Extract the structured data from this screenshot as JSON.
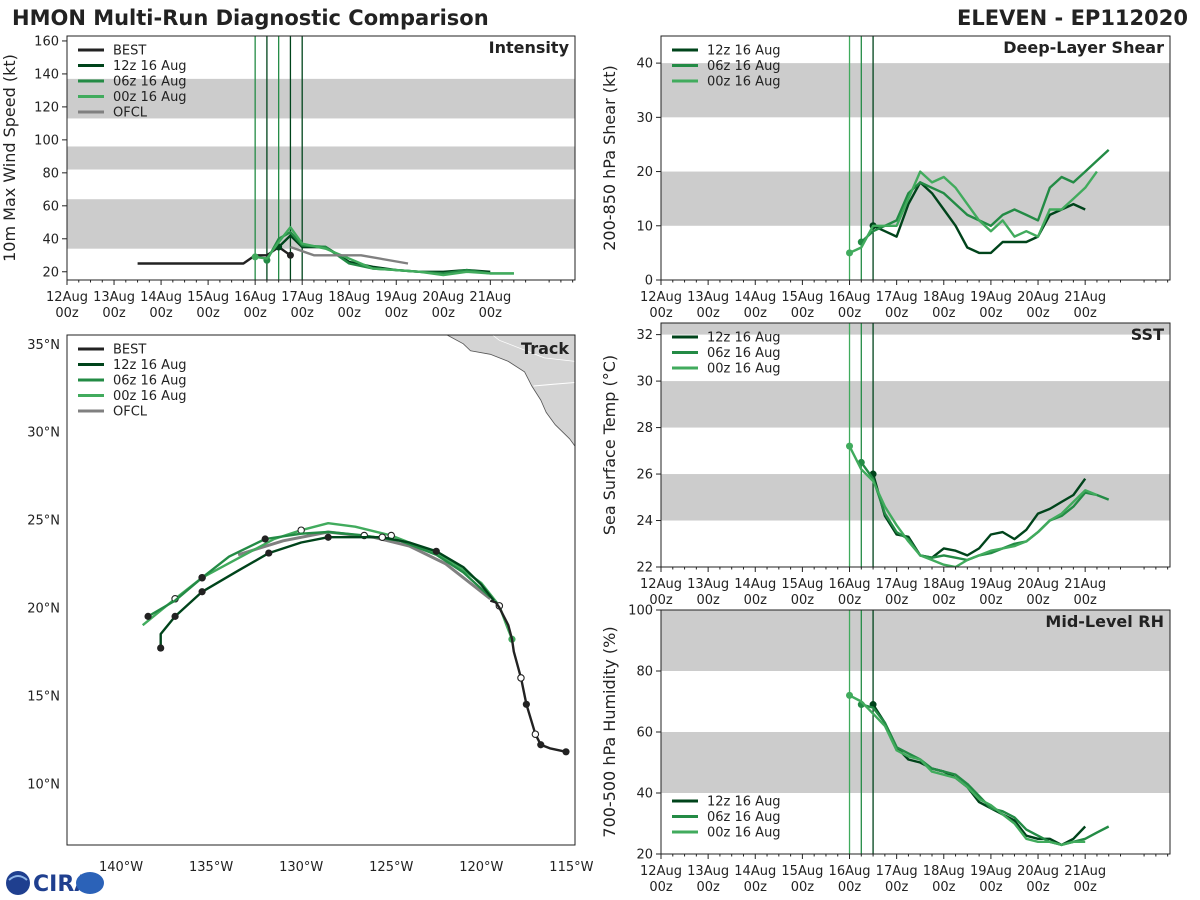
{
  "header": {
    "left_title": "HMON Multi-Run Diagnostic Comparison",
    "right_title": "ELEVEN - EP112020"
  },
  "logo": {
    "text": "CIRA"
  },
  "time_ticks": [
    {
      "day": "12Aug",
      "hour": "00z"
    },
    {
      "day": "13Aug",
      "hour": "00z"
    },
    {
      "day": "14Aug",
      "hour": "00z"
    },
    {
      "day": "15Aug",
      "hour": "00z"
    },
    {
      "day": "16Aug",
      "hour": "00z"
    },
    {
      "day": "17Aug",
      "hour": "00z"
    },
    {
      "day": "18Aug",
      "hour": "00z"
    },
    {
      "day": "19Aug",
      "hour": "00z"
    },
    {
      "day": "20Aug",
      "hour": "00z"
    },
    {
      "day": "21Aug",
      "hour": "00z"
    }
  ],
  "colors": {
    "BEST": "#222222",
    "12z": "#00441b",
    "06z": "#238b45",
    "00z": "#41ab5d",
    "OFCL": "#808080",
    "band": "#cccccc",
    "land": "#d4d4d4"
  },
  "chart_data": [
    {
      "id": "intensity",
      "type": "line",
      "title": "Intensity",
      "ylabel": "10m Max Wind Speed (kt)",
      "x_unit": "days since 12Aug 00z",
      "xlim": [
        0,
        10.8
      ],
      "ylim": [
        15,
        163
      ],
      "yticks": [
        20,
        40,
        60,
        80,
        100,
        120,
        140,
        160
      ],
      "bands": [
        [
          34,
          64
        ],
        [
          82,
          96
        ],
        [
          113,
          137
        ]
      ],
      "vlines": [
        {
          "x": 4.0,
          "color": "06z"
        },
        {
          "x": 4.25,
          "color": "12z"
        },
        {
          "x": 4.5,
          "color": "06z"
        },
        {
          "x": 4.75,
          "color": "12z"
        },
        {
          "x": 5.0,
          "color": "12z"
        }
      ],
      "legend": [
        "BEST",
        "12z 16 Aug",
        "06z 16 Aug",
        "00z 16 Aug",
        "OFCL"
      ],
      "series": [
        {
          "name": "BEST",
          "color": "BEST",
          "x": [
            1.5,
            2,
            2.5,
            3,
            3.5,
            3.75,
            4.0,
            4.25,
            4.5,
            4.75
          ],
          "y": [
            25,
            25,
            25,
            25,
            25,
            25,
            30,
            30,
            35,
            30
          ],
          "dots": [
            4.75
          ]
        },
        {
          "name": "12z 16 Aug",
          "color": "12z",
          "x": [
            4.5,
            4.75,
            5.0,
            5.5,
            6,
            6.5,
            7,
            7.5,
            8,
            8.5,
            9
          ],
          "y": [
            35,
            42,
            35,
            35,
            26,
            23,
            21,
            20,
            20,
            21,
            20
          ],
          "dots": [
            4.5
          ]
        },
        {
          "name": "06z 16 Aug",
          "color": "06z",
          "x": [
            4.25,
            4.5,
            4.75,
            5.0,
            5.5,
            6,
            6.5,
            7,
            7.5,
            8,
            8.5,
            9,
            9.5
          ],
          "y": [
            27,
            40,
            44,
            36,
            35,
            25,
            22,
            21,
            20,
            19,
            21,
            19,
            19
          ],
          "dots": [
            4.25
          ]
        },
        {
          "name": "00z 16 Aug",
          "color": "00z",
          "x": [
            4.0,
            4.25,
            4.5,
            4.75,
            5.0,
            5.5,
            6,
            6.5,
            7,
            7.5,
            8,
            8.5,
            9,
            9.5
          ],
          "y": [
            29,
            28,
            38,
            47,
            37,
            34,
            28,
            22,
            21,
            20,
            18,
            20,
            19,
            19
          ],
          "dots": [
            4.0
          ]
        },
        {
          "name": "OFCL",
          "color": "OFCL",
          "x": [
            4.75,
            5.25,
            6.25,
            7.25
          ],
          "y": [
            35,
            30,
            30,
            25
          ]
        }
      ]
    },
    {
      "id": "shear",
      "type": "line",
      "title": "Deep-Layer Shear",
      "ylabel": "200-850 hPa Shear (kt)",
      "x_unit": "days since 12Aug 00z",
      "xlim": [
        0,
        10.8
      ],
      "ylim": [
        0,
        45
      ],
      "yticks": [
        0,
        10,
        20,
        30,
        40
      ],
      "bands": [
        [
          10,
          20
        ],
        [
          30,
          40
        ]
      ],
      "vlines": [
        {
          "x": 4.0,
          "color": "00z"
        },
        {
          "x": 4.25,
          "color": "06z"
        },
        {
          "x": 4.5,
          "color": "12z"
        }
      ],
      "legend": [
        "12z 16 Aug",
        "06z 16 Aug",
        "00z 16 Aug"
      ],
      "series": [
        {
          "name": "12z 16 Aug",
          "color": "12z",
          "x": [
            4.5,
            4.75,
            5.0,
            5.25,
            5.5,
            5.75,
            6.0,
            6.25,
            6.5,
            6.75,
            7.0,
            7.25,
            7.5,
            7.75,
            8.0,
            8.25,
            8.5,
            8.75,
            9.0
          ],
          "y": [
            10,
            9,
            8,
            14,
            18,
            16,
            13,
            10,
            6,
            5,
            5,
            7,
            7,
            7,
            8,
            12,
            13,
            14,
            13
          ],
          "dots": [
            4.5
          ]
        },
        {
          "name": "06z 16 Aug",
          "color": "06z",
          "x": [
            4.25,
            4.5,
            4.75,
            5.0,
            5.25,
            5.5,
            5.75,
            6.0,
            6.25,
            6.5,
            6.75,
            7.0,
            7.25,
            7.5,
            7.75,
            8.0,
            8.25,
            8.5,
            8.75,
            9.0,
            9.25,
            9.5
          ],
          "y": [
            7,
            9,
            10,
            11,
            16,
            18,
            17,
            16,
            14,
            12,
            11,
            10,
            12,
            13,
            12,
            11,
            17,
            19,
            18,
            20,
            22,
            24
          ],
          "dots": [
            4.25
          ]
        },
        {
          "name": "00z 16 Aug",
          "color": "00z",
          "x": [
            4.0,
            4.25,
            4.5,
            4.75,
            5.0,
            5.25,
            5.5,
            5.75,
            6.0,
            6.25,
            6.5,
            6.75,
            7.0,
            7.25,
            7.5,
            7.75,
            8.0,
            8.25,
            8.5,
            8.75,
            9.0,
            9.25
          ],
          "y": [
            5,
            6,
            10,
            10,
            10,
            15,
            20,
            18,
            19,
            17,
            14,
            11,
            9,
            11,
            8,
            9,
            8,
            13,
            13,
            15,
            17,
            20
          ],
          "dots": [
            4.0
          ]
        }
      ]
    },
    {
      "id": "track",
      "type": "line",
      "title": "Track",
      "x_unit": "longitude (deg E)",
      "y_unit": "latitude (deg N)",
      "xlim": [
        -143,
        -114.8
      ],
      "ylim": [
        6.5,
        35.5
      ],
      "xticks": [
        -140,
        -135,
        -130,
        -125,
        -120,
        -115
      ],
      "xtick_labels": [
        "140°W",
        "135°W",
        "130°W",
        "125°W",
        "120°W",
        "115°W"
      ],
      "yticks": [
        10,
        15,
        20,
        25,
        30,
        35
      ],
      "ytick_labels": [
        "10°N",
        "15°N",
        "20°N",
        "25°N",
        "30°N",
        "35°N"
      ],
      "legend": [
        "BEST",
        "12z 16 Aug",
        "06z 16 Aug",
        "00z 16 Aug",
        "OFCL"
      ],
      "series": [
        {
          "name": "BEST",
          "color": "BEST",
          "lon": [
            -115.3,
            -116.2,
            -116.7,
            -117.0,
            -117.5,
            -117.8,
            -118.2,
            -118.3,
            -118.5,
            -119.0,
            -119.2,
            -119.5
          ],
          "lat": [
            11.8,
            12.0,
            12.2,
            12.8,
            14.5,
            16.0,
            17.5,
            18.2,
            19.0,
            20.0,
            20.3,
            20.4
          ],
          "filled": [
            0,
            2,
            4
          ],
          "hollow": [
            3,
            5
          ]
        },
        {
          "name": "12z 16 Aug",
          "color": "12z",
          "lon": [
            -119.3,
            -120.0,
            -121.0,
            -122.5,
            -124.0,
            -125.5,
            -127.0,
            -128.5,
            -130.0,
            -131.8,
            -133.5,
            -135.5,
            -137.0,
            -137.8,
            -137.8
          ],
          "lat": [
            20.4,
            21.3,
            22.3,
            23.2,
            23.7,
            24.0,
            24.0,
            24.0,
            23.7,
            23.1,
            22.1,
            20.9,
            19.5,
            18.5,
            17.7
          ],
          "filled": [
            3,
            7,
            9,
            11,
            12,
            14
          ],
          "hollow": [
            5
          ]
        },
        {
          "name": "06z 16 Aug",
          "color": "06z",
          "lon": [
            -119.5,
            -121.0,
            -122.5,
            -124.5,
            -126.5,
            -128.5,
            -130.0,
            -132.0,
            -134.0,
            -135.5,
            -137.0,
            -138.5
          ],
          "lat": [
            20.6,
            22.0,
            23.0,
            23.8,
            24.1,
            24.3,
            24.2,
            23.9,
            22.9,
            21.7,
            20.4,
            19.5
          ],
          "filled": [
            7,
            9,
            11
          ],
          "hollow": [
            4
          ]
        },
        {
          "name": "00z 16 Aug",
          "color": "00z",
          "lon": [
            -118.3,
            -118.6,
            -119.0,
            -120.0,
            -121.5,
            -123.0,
            -125.0,
            -127.0,
            -128.5,
            -130.0,
            -131.5,
            -133.5,
            -135.5,
            -137.0,
            -138.8
          ],
          "lat": [
            18.2,
            19.0,
            20.1,
            21.4,
            22.5,
            23.3,
            24.1,
            24.6,
            24.8,
            24.4,
            23.9,
            22.8,
            21.7,
            20.5,
            19.0
          ],
          "filled": [
            0
          ],
          "hollow": [
            2,
            6,
            9,
            12,
            13
          ]
        },
        {
          "name": "OFCL",
          "color": "OFCL",
          "lon": [
            -119.5,
            -120.5,
            -122.0,
            -124.0,
            -126.0,
            -128.5,
            -131.0,
            -133.5
          ],
          "lat": [
            20.5,
            21.3,
            22.5,
            23.5,
            24.0,
            24.3,
            23.8,
            23.0
          ]
        }
      ]
    },
    {
      "id": "sst",
      "type": "line",
      "title": "SST",
      "ylabel": "Sea Surface Temp (°C)",
      "x_unit": "days since 12Aug 00z",
      "xlim": [
        0,
        10.8
      ],
      "ylim": [
        22,
        32.5
      ],
      "yticks": [
        22,
        24,
        26,
        28,
        30,
        32
      ],
      "bands": [
        [
          24,
          26
        ],
        [
          28,
          30
        ],
        [
          32,
          34
        ]
      ],
      "vlines": [
        {
          "x": 4.0,
          "color": "00z"
        },
        {
          "x": 4.25,
          "color": "06z"
        },
        {
          "x": 4.5,
          "color": "12z"
        }
      ],
      "legend": [
        "12z 16 Aug",
        "06z 16 Aug",
        "00z 16 Aug"
      ],
      "series": [
        {
          "name": "12z 16 Aug",
          "color": "12z",
          "x": [
            4.5,
            4.75,
            5.0,
            5.25,
            5.5,
            5.75,
            6.0,
            6.25,
            6.5,
            6.75,
            7.0,
            7.25,
            7.5,
            7.75,
            8.0,
            8.25,
            8.5,
            8.75,
            9.0
          ],
          "y": [
            26.0,
            24.2,
            23.4,
            23.3,
            22.5,
            22.4,
            22.8,
            22.7,
            22.5,
            22.8,
            23.4,
            23.5,
            23.2,
            23.6,
            24.3,
            24.5,
            24.8,
            25.1,
            25.8
          ],
          "dots": [
            4.5
          ]
        },
        {
          "name": "06z 16 Aug",
          "color": "06z",
          "x": [
            4.25,
            4.5,
            4.75,
            5.0,
            5.25,
            5.5,
            5.75,
            6.0,
            6.25,
            6.5,
            6.75,
            7.0,
            7.25,
            7.5,
            7.75,
            8.0,
            8.25,
            8.5,
            8.75,
            9.0,
            9.25,
            9.5
          ],
          "y": [
            26.5,
            25.8,
            24.3,
            23.5,
            23.2,
            22.5,
            22.4,
            22.5,
            22.4,
            22.3,
            22.5,
            22.6,
            22.8,
            23.0,
            23.1,
            23.5,
            24.0,
            24.2,
            24.6,
            25.2,
            25.1,
            24.9
          ],
          "dots": [
            4.25
          ]
        },
        {
          "name": "00z 16 Aug",
          "color": "00z",
          "x": [
            4.0,
            4.25,
            4.5,
            4.75,
            5.0,
            5.25,
            5.5,
            5.75,
            6.0,
            6.25,
            6.5,
            6.75,
            7.0,
            7.25,
            7.5,
            7.75,
            8.0,
            8.25,
            8.5,
            8.75,
            9.0,
            9.25
          ],
          "y": [
            27.2,
            26.2,
            25.7,
            24.6,
            23.8,
            23.1,
            22.5,
            22.3,
            22.1,
            22.0,
            22.3,
            22.5,
            22.7,
            22.8,
            22.9,
            23.1,
            23.5,
            24.0,
            24.3,
            24.8,
            25.3,
            25.1
          ],
          "dots": [
            4.0
          ]
        }
      ]
    },
    {
      "id": "rh",
      "type": "line",
      "title": "Mid-Level RH",
      "ylabel": "700-500 hPa Humidity (%)",
      "x_unit": "days since 12Aug 00z",
      "xlim": [
        0,
        10.8
      ],
      "ylim": [
        20,
        100
      ],
      "yticks": [
        20,
        40,
        60,
        80,
        100
      ],
      "bands": [
        [
          40,
          60
        ],
        [
          80,
          100
        ]
      ],
      "vlines": [
        {
          "x": 4.0,
          "color": "00z"
        },
        {
          "x": 4.25,
          "color": "06z"
        },
        {
          "x": 4.5,
          "color": "12z"
        }
      ],
      "legend": [
        "12z 16 Aug",
        "06z 16 Aug",
        "00z 16 Aug"
      ],
      "legend_pos": "bottom-left",
      "series": [
        {
          "name": "12z 16 Aug",
          "color": "12z",
          "x": [
            4.5,
            4.75,
            5.0,
            5.25,
            5.5,
            5.75,
            6.0,
            6.25,
            6.5,
            6.75,
            7.0,
            7.25,
            7.5,
            7.75,
            8.0,
            8.25,
            8.5,
            8.75,
            9.0
          ],
          "y": [
            69,
            63,
            55,
            51,
            50,
            48,
            47,
            45,
            42,
            37,
            35,
            33,
            31,
            26,
            25,
            25,
            23,
            25,
            29
          ],
          "dots": [
            4.5
          ]
        },
        {
          "name": "06z 16 Aug",
          "color": "06z",
          "x": [
            4.25,
            4.5,
            4.75,
            5.0,
            5.25,
            5.5,
            5.75,
            6.0,
            6.25,
            6.5,
            6.75,
            7.0,
            7.25,
            7.5,
            7.75,
            8.0,
            8.25,
            8.5,
            8.75,
            9.0,
            9.25,
            9.5
          ],
          "y": [
            69,
            68,
            63,
            55,
            53,
            51,
            48,
            47,
            46,
            43,
            39,
            35,
            34,
            32,
            28,
            26,
            24,
            23,
            24,
            25,
            27,
            29
          ],
          "dots": [
            4.25
          ]
        },
        {
          "name": "00z 16 Aug",
          "color": "00z",
          "x": [
            4.0,
            4.25,
            4.5,
            4.75,
            5.0,
            5.25,
            5.5,
            5.75,
            6.0,
            6.25,
            6.5,
            6.75,
            7.0,
            7.25,
            7.5,
            7.75,
            8.0,
            8.25,
            8.5,
            8.75,
            9.0
          ],
          "y": [
            72,
            70,
            66,
            62,
            54,
            52,
            51,
            47,
            46,
            45,
            42,
            38,
            36,
            33,
            30,
            25,
            24,
            24,
            23,
            24,
            24
          ],
          "dots": [
            4.0
          ]
        }
      ]
    }
  ]
}
